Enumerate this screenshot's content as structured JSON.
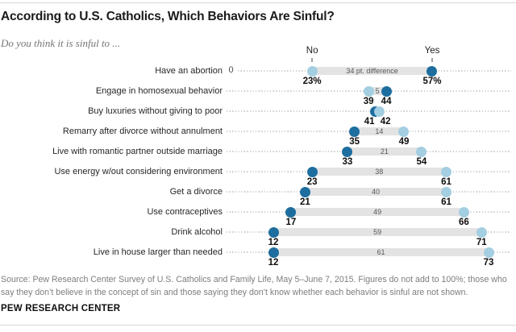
{
  "header": {
    "title": "According to U.S. Catholics, Which Behaviors Are Sinful?",
    "subtitle": "Do you think it is sinful to ..."
  },
  "chart_data": {
    "type": "dumbbell",
    "title": "According to U.S. Catholics, Which Behaviors Are Sinful?",
    "subtitle": "Do you think it is sinful to ...",
    "axis": {
      "no_header": "No",
      "yes_header": "Yes",
      "zero_label": "0",
      "xlim": [
        0,
        79
      ],
      "grid": false
    },
    "categories": [
      "Have an abortion",
      "Engage in homosexual behavior",
      "Buy luxuries without giving to poor",
      "Remarry after divorce without annulment",
      "Live with romantic partner outside marriage",
      "Use energy w/out considering environment",
      "Get a divorce",
      "Use contraceptives",
      "Drink alcohol",
      "Live in house larger than needed"
    ],
    "series": [
      {
        "name": "Yes",
        "color": "#1d6e9e",
        "values": [
          57,
          44,
          41,
          35,
          33,
          23,
          21,
          17,
          12,
          12
        ]
      },
      {
        "name": "No",
        "color": "#a4cee1",
        "values": [
          23,
          39,
          42,
          49,
          54,
          61,
          61,
          66,
          71,
          73
        ]
      }
    ],
    "value_labels": {
      "yes": [
        "57%",
        "44",
        "41",
        "35",
        "33",
        "23",
        "21",
        "17",
        "12",
        "12"
      ],
      "no": [
        "23%",
        "39",
        "42",
        "49",
        "54",
        "61",
        "61",
        "66",
        "71",
        "73"
      ]
    },
    "diff_labels": [
      "34 pt. difference",
      "5",
      "",
      "14",
      "21",
      "38",
      "40",
      "49",
      "59",
      "61"
    ],
    "colors": {
      "yes_dot": "#1d6e9e",
      "no_dot": "#a4cee1",
      "bar": "#e3e3e3"
    }
  },
  "footer": {
    "source": "Source: Pew Research Center Survey of U.S. Catholics and Family Life, May 5–June 7, 2015. Figures do not add to 100%; those who say they don’t believe in the concept of sin and those saying they don’t know whether each behavior is sinful are not shown.",
    "brand": "PEW RESEARCH CENTER"
  }
}
